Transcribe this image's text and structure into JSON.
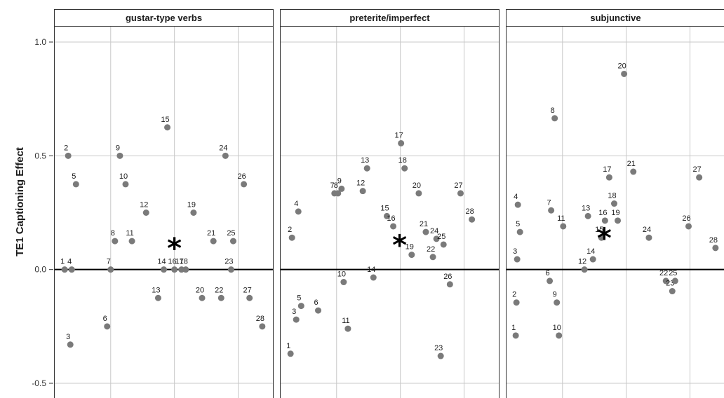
{
  "chart_data": {
    "type": "scatter",
    "ylabel": "TE1 Captioning Effect",
    "ylim": [
      -0.55,
      1.07
    ],
    "yticks": [
      1.0,
      0.5,
      0.0,
      -0.5
    ],
    "ytick_labels": [
      "1.0",
      "0.5",
      "0.0",
      "-0.5"
    ],
    "xlim": [
      -1,
      30
    ],
    "xgrid": [
      7,
      16,
      25
    ],
    "reference_line_y": 0,
    "mean_marker": "*",
    "colors": {
      "point": "#7a7a7a",
      "grid": "#c8c8c8",
      "star": "#000000",
      "zero_line": "#000000"
    },
    "panels": [
      {
        "title": "gustar-type verbs",
        "points": [
          {
            "label": "1",
            "x": 0.5,
            "y": 0.0
          },
          {
            "label": "2",
            "x": 1.0,
            "y": 0.5
          },
          {
            "label": "3",
            "x": 1.3,
            "y": -0.33
          },
          {
            "label": "4",
            "x": 1.5,
            "y": 0.0
          },
          {
            "label": "5",
            "x": 2.1,
            "y": 0.375
          },
          {
            "label": "6",
            "x": 6.5,
            "y": -0.25
          },
          {
            "label": "7",
            "x": 7.0,
            "y": 0.0
          },
          {
            "label": "8",
            "x": 7.6,
            "y": 0.125
          },
          {
            "label": "9",
            "x": 8.3,
            "y": 0.5
          },
          {
            "label": "10",
            "x": 9.1,
            "y": 0.375
          },
          {
            "label": "11",
            "x": 10.0,
            "y": 0.125
          },
          {
            "label": "12",
            "x": 12.0,
            "y": 0.25
          },
          {
            "label": "13",
            "x": 13.7,
            "y": -0.125
          },
          {
            "label": "14",
            "x": 14.5,
            "y": 0.0
          },
          {
            "label": "15",
            "x": 15.0,
            "y": 0.625
          },
          {
            "label": "16",
            "x": 16.0,
            "y": 0.0
          },
          {
            "label": "17",
            "x": 17.0,
            "y": 0.0
          },
          {
            "label": "18",
            "x": 17.6,
            "y": 0.0
          },
          {
            "label": "19",
            "x": 18.7,
            "y": 0.25
          },
          {
            "label": "20",
            "x": 19.9,
            "y": -0.125
          },
          {
            "label": "21",
            "x": 21.5,
            "y": 0.125
          },
          {
            "label": "22",
            "x": 22.6,
            "y": -0.125
          },
          {
            "label": "23",
            "x": 24.0,
            "y": 0.0
          },
          {
            "label": "24",
            "x": 23.2,
            "y": 0.5
          },
          {
            "label": "25",
            "x": 24.3,
            "y": 0.125
          },
          {
            "label": "26",
            "x": 25.8,
            "y": 0.375
          },
          {
            "label": "27",
            "x": 26.6,
            "y": -0.125
          },
          {
            "label": "28",
            "x": 28.4,
            "y": -0.25
          }
        ],
        "mean": {
          "x": 16.0,
          "y": 0.1
        }
      },
      {
        "title": "preterite/imperfect",
        "points": [
          {
            "label": "1",
            "x": 0.5,
            "y": -0.37
          },
          {
            "label": "2",
            "x": 0.7,
            "y": 0.14
          },
          {
            "label": "3",
            "x": 1.3,
            "y": -0.22
          },
          {
            "label": "4",
            "x": 1.6,
            "y": 0.255
          },
          {
            "label": "5",
            "x": 2.0,
            "y": -0.16
          },
          {
            "label": "6",
            "x": 4.4,
            "y": -0.18
          },
          {
            "label": "7",
            "x": 6.7,
            "y": 0.335
          },
          {
            "label": "8",
            "x": 7.2,
            "y": 0.335
          },
          {
            "label": "9",
            "x": 7.7,
            "y": 0.355
          },
          {
            "label": "10",
            "x": 8.0,
            "y": -0.055
          },
          {
            "label": "11",
            "x": 8.6,
            "y": -0.26
          },
          {
            "label": "12",
            "x": 10.7,
            "y": 0.345
          },
          {
            "label": "13",
            "x": 11.3,
            "y": 0.445
          },
          {
            "label": "14",
            "x": 12.2,
            "y": -0.035
          },
          {
            "label": "15",
            "x": 14.1,
            "y": 0.235
          },
          {
            "label": "16",
            "x": 15.0,
            "y": 0.19
          },
          {
            "label": "17",
            "x": 16.1,
            "y": 0.555
          },
          {
            "label": "18",
            "x": 16.6,
            "y": 0.445
          },
          {
            "label": "19",
            "x": 17.6,
            "y": 0.065
          },
          {
            "label": "20",
            "x": 18.6,
            "y": 0.335
          },
          {
            "label": "21",
            "x": 19.6,
            "y": 0.165
          },
          {
            "label": "22",
            "x": 20.6,
            "y": 0.055
          },
          {
            "label": "23",
            "x": 21.7,
            "y": -0.38
          },
          {
            "label": "24",
            "x": 21.1,
            "y": 0.135
          },
          {
            "label": "25",
            "x": 22.1,
            "y": 0.11
          },
          {
            "label": "26",
            "x": 23.0,
            "y": -0.065
          },
          {
            "label": "27",
            "x": 24.5,
            "y": 0.335
          },
          {
            "label": "28",
            "x": 26.1,
            "y": 0.22
          }
        ],
        "mean": {
          "x": 15.9,
          "y": 0.115
        }
      },
      {
        "title": "subjunctive",
        "points": [
          {
            "label": "1",
            "x": 0.4,
            "y": -0.29
          },
          {
            "label": "2",
            "x": 0.5,
            "y": -0.145
          },
          {
            "label": "3",
            "x": 0.6,
            "y": 0.045
          },
          {
            "label": "4",
            "x": 0.7,
            "y": 0.285
          },
          {
            "label": "5",
            "x": 1.0,
            "y": 0.165
          },
          {
            "label": "6",
            "x": 5.2,
            "y": -0.05
          },
          {
            "label": "7",
            "x": 5.4,
            "y": 0.26
          },
          {
            "label": "8",
            "x": 5.9,
            "y": 0.665
          },
          {
            "label": "9",
            "x": 6.2,
            "y": -0.145
          },
          {
            "label": "10",
            "x": 6.5,
            "y": -0.29
          },
          {
            "label": "11",
            "x": 7.1,
            "y": 0.19
          },
          {
            "label": "12",
            "x": 10.1,
            "y": 0.0
          },
          {
            "label": "13",
            "x": 10.6,
            "y": 0.235
          },
          {
            "label": "14",
            "x": 11.3,
            "y": 0.045
          },
          {
            "label": "15",
            "x": 12.5,
            "y": 0.14
          },
          {
            "label": "16",
            "x": 13.0,
            "y": 0.215
          },
          {
            "label": "17",
            "x": 13.6,
            "y": 0.405
          },
          {
            "label": "18",
            "x": 14.3,
            "y": 0.29
          },
          {
            "label": "19",
            "x": 14.8,
            "y": 0.215
          },
          {
            "label": "20",
            "x": 15.7,
            "y": 0.86
          },
          {
            "label": "21",
            "x": 17.0,
            "y": 0.43
          },
          {
            "label": "22",
            "x": 21.6,
            "y": -0.05
          },
          {
            "label": "23",
            "x": 22.5,
            "y": -0.095
          },
          {
            "label": "24",
            "x": 19.2,
            "y": 0.14
          },
          {
            "label": "25",
            "x": 22.9,
            "y": -0.05
          },
          {
            "label": "26",
            "x": 24.8,
            "y": 0.19
          },
          {
            "label": "27",
            "x": 26.3,
            "y": 0.405
          },
          {
            "label": "28",
            "x": 28.6,
            "y": 0.095
          }
        ],
        "mean": {
          "x": 12.9,
          "y": 0.145
        }
      }
    ]
  }
}
